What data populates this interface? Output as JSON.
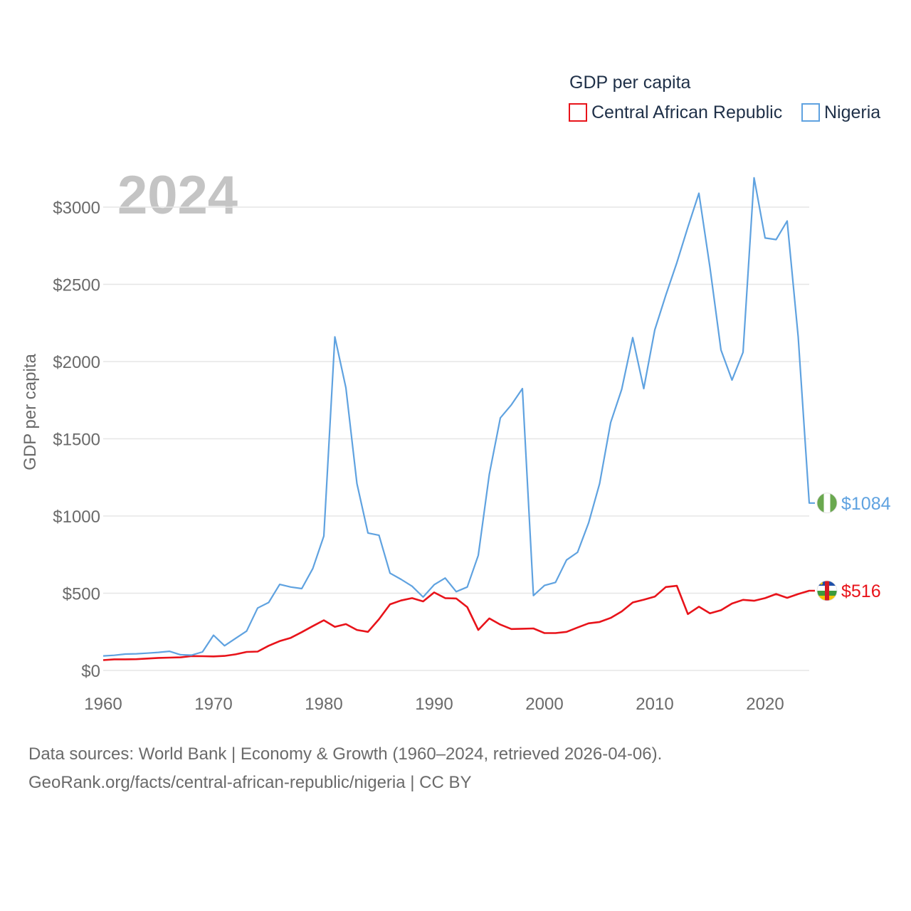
{
  "chart_data": {
    "type": "line",
    "year_label": "2024",
    "legend_title": "GDP per capita",
    "ylabel": "GDP per capita",
    "xlim": [
      1960,
      2024
    ],
    "ylim": [
      0,
      3300
    ],
    "x_ticks": [
      1960,
      1970,
      1980,
      1990,
      2000,
      2010,
      2020
    ],
    "y_ticks": [
      {
        "value": 0,
        "label": "$0"
      },
      {
        "value": 500,
        "label": "$500"
      },
      {
        "value": 1000,
        "label": "$1000"
      },
      {
        "value": 1500,
        "label": "$1500"
      },
      {
        "value": 2000,
        "label": "$2000"
      },
      {
        "value": 2500,
        "label": "$2500"
      },
      {
        "value": 3000,
        "label": "$3000"
      }
    ],
    "x": [
      1960,
      1961,
      1962,
      1963,
      1964,
      1965,
      1966,
      1967,
      1968,
      1969,
      1970,
      1971,
      1972,
      1973,
      1974,
      1975,
      1976,
      1977,
      1978,
      1979,
      1980,
      1981,
      1982,
      1983,
      1984,
      1985,
      1986,
      1987,
      1988,
      1989,
      1990,
      1991,
      1992,
      1993,
      1994,
      1995,
      1996,
      1997,
      1998,
      1999,
      2000,
      2001,
      2002,
      2003,
      2004,
      2005,
      2006,
      2007,
      2008,
      2009,
      2010,
      2011,
      2012,
      2013,
      2014,
      2015,
      2016,
      2017,
      2018,
      2019,
      2020,
      2021,
      2022,
      2023,
      2024
    ],
    "series": [
      {
        "name": "Central African Republic",
        "color": "#e8131a",
        "flag": "central-african-republic",
        "end_label": "$516",
        "values": [
          67,
          72,
          72,
          73,
          77,
          81,
          83,
          85,
          93,
          92,
          91,
          94,
          104,
          120,
          122,
          160,
          190,
          211,
          248,
          287,
          325,
          282,
          300,
          262,
          250,
          332,
          428,
          453,
          468,
          447,
          505,
          468,
          466,
          410,
          262,
          337,
          297,
          268,
          270,
          272,
          242,
          242,
          250,
          278,
          305,
          314,
          340,
          382,
          440,
          458,
          478,
          540,
          548,
          365,
          413,
          370,
          390,
          433,
          457,
          451,
          468,
          495,
          470,
          495,
          516
        ]
      },
      {
        "name": "Nigeria",
        "color": "#5fa2e0",
        "flag": "nigeria",
        "end_label": "$1084",
        "values": [
          94,
          98,
          106,
          108,
          112,
          117,
          124,
          102,
          99,
          120,
          228,
          160,
          208,
          255,
          404,
          440,
          557,
          540,
          530,
          660,
          870,
          2160,
          1830,
          1210,
          890,
          875,
          630,
          590,
          545,
          475,
          555,
          598,
          510,
          540,
          745,
          1270,
          1635,
          1720,
          1825,
          485,
          550,
          570,
          715,
          765,
          955,
          1210,
          1605,
          1820,
          2155,
          1825,
          2205,
          2430,
          2640,
          2870,
          3090,
          2610,
          2075,
          1880,
          2060,
          3190,
          2800,
          2790,
          2910,
          2160,
          1084
        ]
      }
    ]
  },
  "source_line1": "Data sources: World Bank | Economy & Growth (1960–2024, retrieved 2026-04-06).",
  "source_line2": "GeoRank.org/facts/central-african-republic/nigeria | CC BY"
}
